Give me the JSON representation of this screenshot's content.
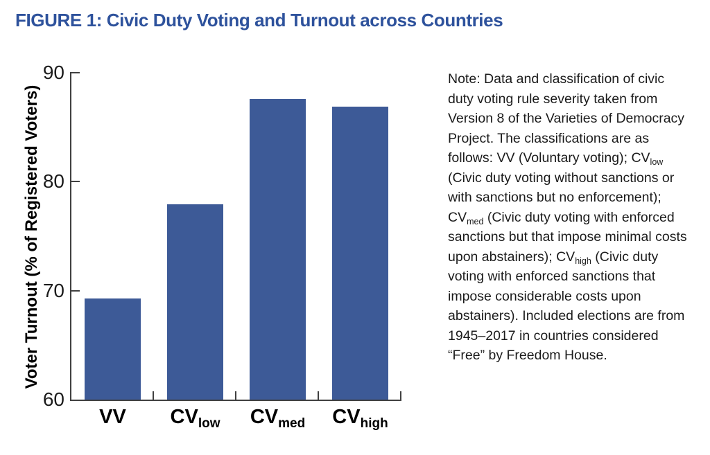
{
  "title": "FIGURE 1: Civic Duty Voting and Turnout across Countries",
  "colors": {
    "title_blue": "#2E529C",
    "bar_blue": "#3D5A97",
    "axis": "#404040",
    "text": "#1B1B1B"
  },
  "chart_data": {
    "type": "bar",
    "title": "FIGURE 1: Civic Duty Voting and Turnout across Countries",
    "xlabel": "",
    "ylabel": "Voter Turnout (% of Registered Voters)",
    "ylim": [
      60,
      90
    ],
    "yticks": [
      60,
      70,
      80,
      90
    ],
    "grid": false,
    "legend": "none",
    "categories": [
      {
        "base": "VV",
        "sub": ""
      },
      {
        "base": "CV",
        "sub": "low"
      },
      {
        "base": "CV",
        "sub": "med"
      },
      {
        "base": "CV",
        "sub": "high"
      }
    ],
    "values": [
      69.3,
      77.9,
      87.6,
      86.9
    ],
    "bar_color": "#3D5A97"
  },
  "note": {
    "segments": [
      {
        "t": "Note: Data and classification of civic duty voting rule severity taken from Version 8 of the Varieties of Democracy Project. The classifications are as follows: VV (Voluntary voting); CV",
        "sub": false
      },
      {
        "t": "low",
        "sub": true
      },
      {
        "t": " (Civic duty voting without sanctions or with sanctions but no enforcement); CV",
        "sub": false
      },
      {
        "t": "med",
        "sub": true
      },
      {
        "t": " (Civic duty voting with enforced sanctions but that impose minimal costs upon abstainers); CV",
        "sub": false
      },
      {
        "t": "high",
        "sub": true
      },
      {
        "t": " (Civic duty voting with enforced sanctions that impose considerable costs upon abstainers). Included elections are from 1945–2017 in countries considered “Free” by Freedom House.",
        "sub": false
      }
    ]
  }
}
